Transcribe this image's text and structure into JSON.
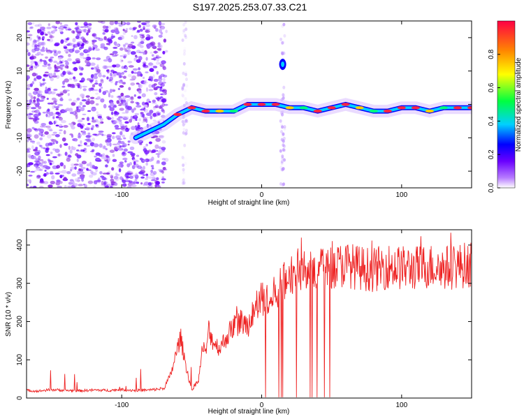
{
  "title": "S197.2025.253.07.33.C21",
  "colors": {
    "signal": "#ee2222",
    "noise": "#8a2be2",
    "frame": "#000000"
  },
  "chart_data": [
    {
      "type": "heatmap",
      "title": "S197.2025.253.07.33.C21",
      "xlabel": "Height of straight line (km)",
      "ylabel": "Frequency (Hz)",
      "xlim": [
        -168,
        150
      ],
      "ylim": [
        -25,
        25
      ],
      "xticks": [
        -100,
        0,
        100
      ],
      "xtick_labels": [
        "-100",
        "0",
        "100"
      ],
      "yticks": [
        -20,
        -10,
        0,
        10,
        20
      ],
      "ytick_labels": [
        "-20",
        "-10",
        "0",
        "10",
        "20"
      ],
      "colorbar": {
        "label": "Normalized spectral amplitude",
        "range": [
          0,
          1
        ],
        "ticks": [
          0,
          0.2,
          0.4,
          0.6,
          0.8
        ],
        "tick_labels": [
          "0.0",
          "0.2",
          "0.4",
          "0.6",
          "0.8"
        ]
      },
      "ridge": {
        "description": "frequency of peak spectral amplitude vs height",
        "x": [
          -90,
          -80,
          -70,
          -60,
          -50,
          -40,
          -30,
          -20,
          -10,
          0,
          10,
          20,
          30,
          40,
          50,
          60,
          70,
          80,
          90,
          100,
          110,
          120,
          130,
          140,
          150
        ],
        "y": [
          -10,
          -8,
          -6,
          -3,
          -1,
          -2,
          -2,
          -2,
          0,
          0,
          0,
          -1,
          -1,
          -2,
          -1,
          0,
          -1,
          -2,
          -2,
          -1,
          -1,
          -2,
          -1,
          -1,
          -1
        ]
      },
      "noise_region_x": [
        -168,
        -68
      ]
    },
    {
      "type": "line",
      "xlabel": "Height of straight line (km)",
      "ylabel": "SNR (10 * v/v)",
      "xlim": [
        -168,
        150
      ],
      "ylim": [
        0,
        440
      ],
      "xticks": [
        -100,
        0,
        100
      ],
      "xtick_labels": [
        "-100",
        "0",
        "100"
      ],
      "yticks": [
        0,
        100,
        200,
        300,
        400
      ],
      "ytick_labels": [
        "0",
        "100",
        "200",
        "300",
        "400"
      ],
      "series": [
        {
          "name": "SNR",
          "x": [
            -168,
            -160,
            -150,
            -140,
            -130,
            -120,
            -110,
            -100,
            -90,
            -80,
            -70,
            -65,
            -58,
            -55,
            -52,
            -50,
            -45,
            -42,
            -40,
            -38,
            -35,
            -30,
            -25,
            -20,
            -15,
            -10,
            -5,
            0,
            5,
            10,
            15,
            20,
            25,
            30,
            35,
            40,
            45,
            50,
            60,
            70,
            80,
            90,
            100,
            110,
            120,
            130,
            140,
            150
          ],
          "values": [
            20,
            18,
            22,
            20,
            19,
            21,
            20,
            22,
            20,
            21,
            25,
            60,
            160,
            100,
            50,
            20,
            50,
            140,
            110,
            180,
            150,
            130,
            160,
            190,
            200,
            190,
            230,
            260,
            240,
            280,
            300,
            320,
            330,
            350,
            340,
            340,
            330,
            340,
            350,
            340,
            335,
            345,
            340,
            340,
            345,
            340,
            345,
            350
          ]
        }
      ]
    }
  ]
}
